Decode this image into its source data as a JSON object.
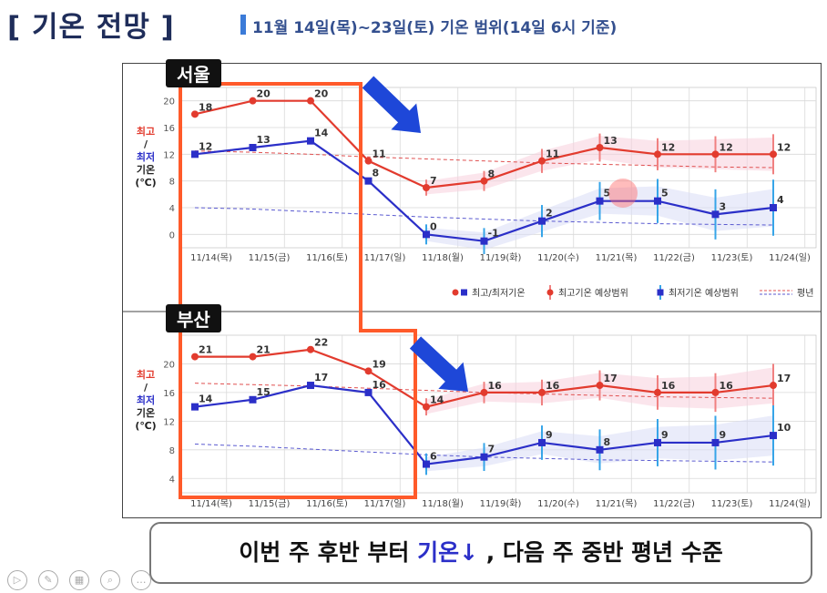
{
  "slide": {
    "title": "[ 기온 전망 ]",
    "subtitle": "11월 14일(목)~23일(토) 기온 범위(14일 6시 기준)",
    "bottom_message_prefix": "이번 주 후반 부터 ",
    "bottom_message_highlight": "기온↓",
    "bottom_message_suffix": " , 다음 주 중반 평년 수준"
  },
  "controls": [
    {
      "name": "play-control-icon",
      "glyph": "▷"
    },
    {
      "name": "pen-control-icon",
      "glyph": "✎"
    },
    {
      "name": "slides-control-icon",
      "glyph": "▦"
    },
    {
      "name": "zoom-control-icon",
      "glyph": "⌕"
    },
    {
      "name": "more-control-icon",
      "glyph": "…"
    }
  ],
  "colors": {
    "max_line": "#e23b2e",
    "min_line": "#2b2fc8",
    "max_band": "#f7d0dc",
    "min_band": "#d9dcf6",
    "normal_line_max": "#e05050",
    "normal_line_min": "#5a5ad0",
    "highlight_box": "#ff5a2a",
    "arrow": "#1e47d8"
  },
  "legend": [
    {
      "label": "최고/최저기온",
      "type": "point"
    },
    {
      "label": "최고기온 예상범위",
      "type": "max-range"
    },
    {
      "label": "최저기온 예상범위",
      "type": "min-range"
    },
    {
      "label": "평년",
      "type": "normal"
    }
  ],
  "chart_data": [
    {
      "type": "line",
      "city": "서울",
      "ylabel_lines": [
        "최고",
        "/",
        "최저",
        "기온",
        "(℃)"
      ],
      "ylim": [
        -2,
        22
      ],
      "yticks": [
        0,
        4,
        8,
        12,
        16,
        20
      ],
      "categories": [
        "11/14(목)",
        "11/15(금)",
        "11/16(토)",
        "11/17(일)",
        "11/18(월)",
        "11/19(화)",
        "11/20(수)",
        "11/21(목)",
        "11/22(금)",
        "11/23(토)",
        "11/24(일)"
      ],
      "series": [
        {
          "name": "최고기온",
          "values": [
            18,
            20,
            20,
            11,
            7,
            8,
            11,
            13,
            12,
            12,
            12
          ]
        },
        {
          "name": "최저기온",
          "values": [
            12,
            13,
            14,
            8,
            0,
            -1,
            2,
            5,
            5,
            3,
            4
          ]
        }
      ],
      "normal_max": [
        12.5,
        12.3,
        12.0,
        11.6,
        11.3,
        11.0,
        10.7,
        10.5,
        10.3,
        10.1,
        10.0
      ],
      "normal_min": [
        4.0,
        3.8,
        3.4,
        3.0,
        2.6,
        2.3,
        2.0,
        1.8,
        1.6,
        1.5,
        1.4
      ]
    },
    {
      "type": "line",
      "city": "부산",
      "ylabel_lines": [
        "최고",
        "/",
        "최저",
        "기온",
        "(℃)"
      ],
      "ylim": [
        2,
        24
      ],
      "yticks": [
        4,
        8,
        12,
        16,
        20
      ],
      "categories": [
        "11/14(목)",
        "11/15(금)",
        "11/16(토)",
        "11/17(일)",
        "11/18(월)",
        "11/19(화)",
        "11/20(수)",
        "11/21(목)",
        "11/22(금)",
        "11/23(토)",
        "11/24(일)"
      ],
      "series": [
        {
          "name": "최고기온",
          "values": [
            21,
            21,
            22,
            19,
            14,
            16,
            16,
            17,
            16,
            16,
            17
          ]
        },
        {
          "name": "최저기온",
          "values": [
            14,
            15,
            17,
            16,
            6,
            7,
            9,
            8,
            9,
            9,
            10
          ]
        }
      ],
      "normal_max": [
        17.3,
        17.1,
        16.9,
        16.6,
        16.3,
        16.0,
        15.8,
        15.6,
        15.4,
        15.3,
        15.2
      ],
      "normal_min": [
        8.8,
        8.5,
        8.1,
        7.7,
        7.3,
        7.0,
        6.8,
        6.6,
        6.5,
        6.4,
        6.3
      ]
    }
  ]
}
